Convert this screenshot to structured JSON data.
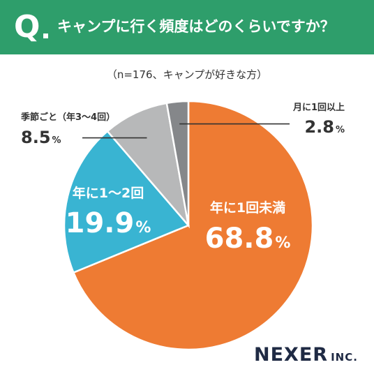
{
  "header": {
    "q_mark": "Q",
    "question": "キャンプに行く頻度はどのくらいですか？",
    "background_color": "#2e9e6b"
  },
  "subtitle": "（n=176、キャンプが好きな方）",
  "chart_data": {
    "type": "pie",
    "start_angle_deg": 0,
    "direction": "clockwise",
    "slices": [
      {
        "label": "年に1回未満",
        "value": 68.8,
        "value_text": "68.8",
        "unit": "%",
        "color": "#ee7b33",
        "label_position": "inside",
        "text_color": "#ffffff"
      },
      {
        "label": "年に1～2回",
        "value": 19.9,
        "value_text": "19.9",
        "unit": "%",
        "color": "#39b4d2",
        "label_position": "inside",
        "text_color": "#ffffff"
      },
      {
        "label": "季節ごと（年3～4回）",
        "value": 8.5,
        "value_text": "8.5",
        "unit": "%",
        "color": "#b7b8b9",
        "label_position": "outside-left",
        "text_color": "#333333"
      },
      {
        "label": "月に1回以上",
        "value": 2.8,
        "value_text": "2.8",
        "unit": "%",
        "color": "#85878a",
        "label_position": "outside-right",
        "text_color": "#333333"
      }
    ]
  },
  "logo": {
    "main": "NEXER",
    "sub": "INC."
  }
}
